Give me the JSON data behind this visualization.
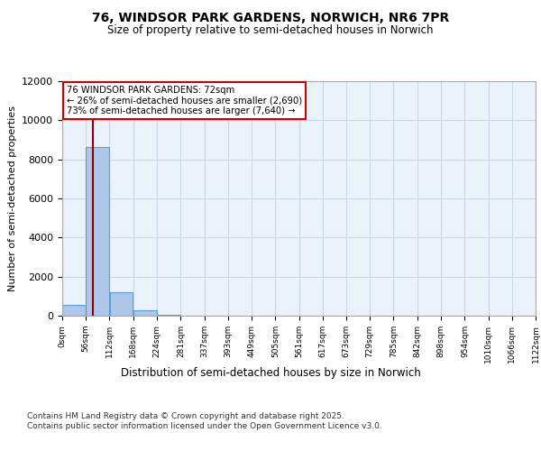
{
  "title1": "76, WINDSOR PARK GARDENS, NORWICH, NR6 7PR",
  "title2": "Size of property relative to semi-detached houses in Norwich",
  "xlabel": "Distribution of semi-detached houses by size in Norwich",
  "ylabel": "Number of semi-detached properties",
  "property_size": 72,
  "property_label": "76 WINDSOR PARK GARDENS: 72sqm",
  "pct_smaller": 26,
  "pct_larger": 73,
  "count_smaller": 2690,
  "count_larger": 7640,
  "bin_edges": [
    0,
    56,
    112,
    168,
    224,
    281,
    337,
    393,
    449,
    505,
    561,
    617,
    673,
    729,
    785,
    842,
    898,
    954,
    1010,
    1066,
    1122
  ],
  "bar_heights": [
    550,
    8650,
    1200,
    280,
    50,
    10,
    5,
    2,
    1,
    1,
    0,
    0,
    0,
    0,
    0,
    0,
    0,
    0,
    0,
    0
  ],
  "bar_color": "#aec6e8",
  "bar_edge_color": "#5a9fd4",
  "vline_color": "#8b0000",
  "vline_x": 72,
  "ylim": [
    0,
    12000
  ],
  "yticks": [
    0,
    2000,
    4000,
    6000,
    8000,
    10000,
    12000
  ],
  "annotation_box_color": "#ffffff",
  "annotation_box_edge": "#cc0000",
  "grid_color": "#c8d8e8",
  "bg_color": "#eaf3fb",
  "footer_text": "Contains HM Land Registry data © Crown copyright and database right 2025.\nContains public sector information licensed under the Open Government Licence v3.0."
}
